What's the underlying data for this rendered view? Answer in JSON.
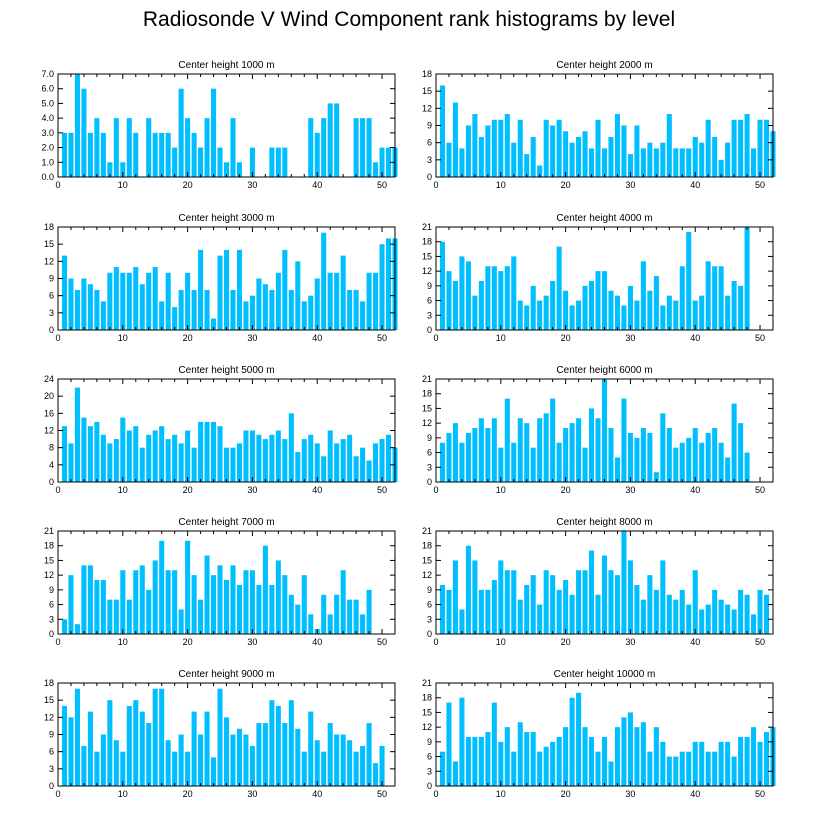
{
  "title": "Radiosonde V Wind Component rank histograms by level",
  "colors": {
    "bar": "#00BFFF",
    "axis": "#000000"
  },
  "chart_data": [
    {
      "type": "bar",
      "title": "Center height 1000 m",
      "xlim": [
        0,
        52
      ],
      "ylim": [
        0,
        7
      ],
      "x_ticks": [
        0,
        10,
        20,
        30,
        40,
        50
      ],
      "y_ticks": [
        "0.0",
        "1.0",
        "2.0",
        "3.0",
        "4.0",
        "5.0",
        "6.0",
        "7.0"
      ],
      "y_tick_values": [
        0,
        1,
        2,
        3,
        4,
        5,
        6,
        7
      ],
      "values": [
        3,
        3,
        7,
        6,
        3,
        4,
        3,
        1,
        4,
        1,
        4,
        3,
        0,
        4,
        3,
        3,
        3,
        2,
        6,
        4,
        3,
        2,
        4,
        6,
        2,
        1,
        4,
        1,
        0,
        2,
        0,
        0,
        2,
        2,
        2,
        0,
        0,
        0,
        4,
        3,
        4,
        5,
        5,
        0,
        0,
        4,
        4,
        4,
        1,
        2,
        2,
        2
      ]
    },
    {
      "type": "bar",
      "title": "Center height 2000 m",
      "xlim": [
        0,
        52
      ],
      "ylim": [
        0,
        18
      ],
      "x_ticks": [
        0,
        10,
        20,
        30,
        40,
        50
      ],
      "y_ticks": [
        "0",
        "3",
        "6",
        "9",
        "12",
        "15",
        "18"
      ],
      "y_tick_values": [
        0,
        3,
        6,
        9,
        12,
        15,
        18
      ],
      "values": [
        16,
        6,
        13,
        5,
        9,
        11,
        7,
        9,
        10,
        10,
        11,
        6,
        10,
        4,
        7,
        2,
        10,
        9,
        10,
        8,
        6,
        7,
        8,
        5,
        10,
        5,
        7,
        11,
        9,
        4,
        9,
        5,
        6,
        5,
        6,
        11,
        5,
        5,
        5,
        7,
        6,
        10,
        7,
        3,
        6,
        10,
        10,
        11,
        5,
        10,
        10,
        8
      ]
    },
    {
      "type": "bar",
      "title": "Center height 3000 m",
      "xlim": [
        0,
        52
      ],
      "ylim": [
        0,
        18
      ],
      "x_ticks": [
        0,
        10,
        20,
        30,
        40,
        50
      ],
      "y_ticks": [
        "0",
        "3",
        "6",
        "9",
        "12",
        "15",
        "18"
      ],
      "y_tick_values": [
        0,
        3,
        6,
        9,
        12,
        15,
        18
      ],
      "values": [
        13,
        9,
        7,
        9,
        8,
        7,
        5,
        10,
        11,
        10,
        10,
        11,
        8,
        10,
        11,
        5,
        10,
        4,
        7,
        10,
        7,
        14,
        7,
        2,
        13,
        14,
        7,
        14,
        5,
        6,
        9,
        8,
        7,
        10,
        14,
        7,
        12,
        5,
        6,
        9,
        17,
        10,
        10,
        13,
        7,
        7,
        5,
        10,
        10,
        15,
        16,
        16
      ]
    },
    {
      "type": "bar",
      "title": "Center height 4000 m",
      "xlim": [
        0,
        52
      ],
      "ylim": [
        0,
        21
      ],
      "x_ticks": [
        0,
        10,
        20,
        30,
        40,
        50
      ],
      "y_ticks": [
        "0",
        "3",
        "6",
        "9",
        "12",
        "15",
        "18",
        "21"
      ],
      "y_tick_values": [
        0,
        3,
        6,
        9,
        12,
        15,
        18,
        21
      ],
      "values": [
        18,
        12,
        10,
        15,
        14,
        7,
        10,
        13,
        13,
        12,
        13,
        15,
        6,
        5,
        9,
        6,
        7,
        10,
        17,
        8,
        5,
        6,
        9,
        10,
        12,
        12,
        8,
        7,
        5,
        9,
        6,
        14,
        8,
        11,
        5,
        7,
        6,
        13,
        20,
        6,
        7,
        14,
        13,
        13,
        7,
        10,
        9,
        21,
        0,
        0,
        0,
        0
      ]
    },
    {
      "type": "bar",
      "title": "Center height 5000 m",
      "xlim": [
        0,
        52
      ],
      "ylim": [
        0,
        24
      ],
      "x_ticks": [
        0,
        10,
        20,
        30,
        40,
        50
      ],
      "y_ticks": [
        "0",
        "4",
        "8",
        "12",
        "16",
        "20",
        "24"
      ],
      "y_tick_values": [
        0,
        4,
        8,
        12,
        16,
        20,
        24
      ],
      "values": [
        13,
        9,
        22,
        15,
        13,
        14,
        11,
        9,
        10,
        15,
        12,
        13,
        8,
        11,
        12,
        13,
        10,
        11,
        9,
        12,
        8,
        14,
        14,
        14,
        13,
        8,
        8,
        9,
        12,
        12,
        11,
        10,
        11,
        12,
        10,
        16,
        7,
        10,
        11,
        9,
        6,
        12,
        9,
        10,
        11,
        6,
        8,
        5,
        9,
        10,
        11,
        8
      ]
    },
    {
      "type": "bar",
      "title": "Center height 6000 m",
      "xlim": [
        0,
        52
      ],
      "ylim": [
        0,
        21
      ],
      "x_ticks": [
        0,
        10,
        20,
        30,
        40,
        50
      ],
      "y_ticks": [
        "0",
        "3",
        "6",
        "9",
        "12",
        "15",
        "18",
        "21"
      ],
      "y_tick_values": [
        0,
        3,
        6,
        9,
        12,
        15,
        18,
        21
      ],
      "values": [
        8,
        10,
        12,
        8,
        10,
        11,
        13,
        11,
        13,
        7,
        17,
        8,
        13,
        12,
        7,
        13,
        14,
        17,
        8,
        11,
        12,
        13,
        7,
        15,
        13,
        21,
        11,
        5,
        17,
        10,
        9,
        11,
        10,
        2,
        14,
        11,
        7,
        8,
        9,
        11,
        8,
        10,
        11,
        8,
        5,
        16,
        12,
        6,
        0,
        0,
        0,
        0
      ]
    },
    {
      "type": "bar",
      "title": "Center height 7000 m",
      "xlim": [
        0,
        52
      ],
      "ylim": [
        0,
        21
      ],
      "x_ticks": [
        0,
        10,
        20,
        30,
        40,
        50
      ],
      "y_ticks": [
        "0",
        "3",
        "6",
        "9",
        "12",
        "15",
        "18",
        "21"
      ],
      "y_tick_values": [
        0,
        3,
        6,
        9,
        12,
        15,
        18,
        21
      ],
      "values": [
        3,
        12,
        2,
        14,
        14,
        11,
        11,
        7,
        7,
        13,
        7,
        13,
        14,
        9,
        15,
        19,
        13,
        13,
        5,
        19,
        12,
        7,
        16,
        12,
        14,
        11,
        14,
        10,
        13,
        13,
        10,
        18,
        10,
        15,
        12,
        8,
        6,
        12,
        4,
        1,
        8,
        4,
        8,
        13,
        7,
        7,
        4,
        9,
        0,
        0,
        0,
        0
      ]
    },
    {
      "type": "bar",
      "title": "Center height 8000 m",
      "xlim": [
        0,
        52
      ],
      "ylim": [
        0,
        21
      ],
      "x_ticks": [
        0,
        10,
        20,
        30,
        40,
        50
      ],
      "y_ticks": [
        "0",
        "3",
        "6",
        "9",
        "12",
        "15",
        "18",
        "21"
      ],
      "y_tick_values": [
        0,
        3,
        6,
        9,
        12,
        15,
        18,
        21
      ],
      "values": [
        10,
        9,
        15,
        5,
        18,
        15,
        9,
        9,
        11,
        15,
        13,
        13,
        7,
        10,
        12,
        6,
        13,
        12,
        9,
        11,
        8,
        13,
        13,
        17,
        8,
        16,
        13,
        12,
        21,
        15,
        10,
        7,
        12,
        9,
        15,
        8,
        7,
        9,
        6,
        13,
        5,
        6,
        9,
        7,
        6,
        5,
        9,
        8,
        4,
        9,
        8,
        0
      ]
    },
    {
      "type": "bar",
      "title": "Center height 9000 m",
      "xlim": [
        0,
        52
      ],
      "ylim": [
        0,
        18
      ],
      "x_ticks": [
        0,
        10,
        20,
        30,
        40,
        50
      ],
      "y_ticks": [
        "0",
        "3",
        "6",
        "9",
        "12",
        "15",
        "18"
      ],
      "y_tick_values": [
        0,
        3,
        6,
        9,
        12,
        15,
        18
      ],
      "values": [
        14,
        12,
        17,
        7,
        13,
        6,
        9,
        15,
        8,
        6,
        14,
        15,
        13,
        11,
        17,
        17,
        8,
        6,
        9,
        6,
        13,
        9,
        13,
        5,
        17,
        12,
        9,
        10,
        9,
        7,
        11,
        11,
        15,
        14,
        11,
        15,
        10,
        6,
        13,
        8,
        6,
        11,
        9,
        9,
        8,
        6,
        7,
        11,
        4,
        7,
        0,
        0
      ]
    },
    {
      "type": "bar",
      "title": "Center height 10000 m",
      "xlim": [
        0,
        52
      ],
      "ylim": [
        0,
        21
      ],
      "x_ticks": [
        0,
        10,
        20,
        30,
        40,
        50
      ],
      "y_ticks": [
        "0",
        "3",
        "6",
        "9",
        "12",
        "15",
        "18",
        "21"
      ],
      "y_tick_values": [
        0,
        3,
        6,
        9,
        12,
        15,
        18,
        21
      ],
      "values": [
        7,
        17,
        5,
        18,
        10,
        10,
        10,
        11,
        17,
        9,
        12,
        7,
        13,
        11,
        11,
        7,
        8,
        9,
        10,
        12,
        18,
        19,
        12,
        10,
        7,
        10,
        5,
        12,
        14,
        15,
        12,
        13,
        7,
        12,
        9,
        6,
        6,
        7,
        7,
        9,
        9,
        7,
        7,
        9,
        9,
        6,
        10,
        10,
        12,
        9,
        11,
        12
      ]
    }
  ]
}
